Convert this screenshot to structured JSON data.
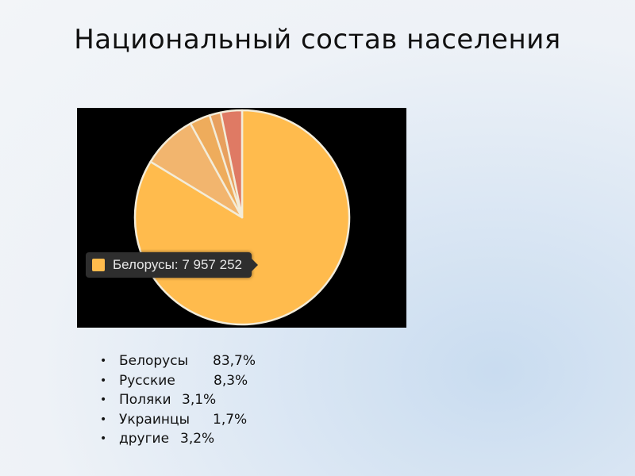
{
  "title": "Национальный состав населения",
  "chart_data": {
    "type": "pie",
    "categories": [
      "Белорусы",
      "Русские",
      "Поляки",
      "Украинцы",
      "другие"
    ],
    "values": [
      83.7,
      8.3,
      3.1,
      1.7,
      3.2
    ],
    "colors": [
      "#ffbb4d",
      "#f2b56e",
      "#eeac5c",
      "#e8a05e",
      "#df7a64"
    ],
    "background": "#000000",
    "slice_border_color": "#f3ecd9",
    "tooltip": {
      "label": "Белорусы: 7 957 252",
      "swatch_color": "#ffbb4d"
    }
  },
  "legend": {
    "bullet": "•",
    "items": [
      {
        "name": "Белорусы",
        "pct": "83,7%"
      },
      {
        "name": "Русские",
        "pct": "8,3%"
      },
      {
        "name": "Поляки",
        "pct": "3,1%"
      },
      {
        "name": "Украинцы",
        "pct": "1,7%"
      },
      {
        "name": "другие",
        "pct": "3,2%"
      }
    ]
  }
}
